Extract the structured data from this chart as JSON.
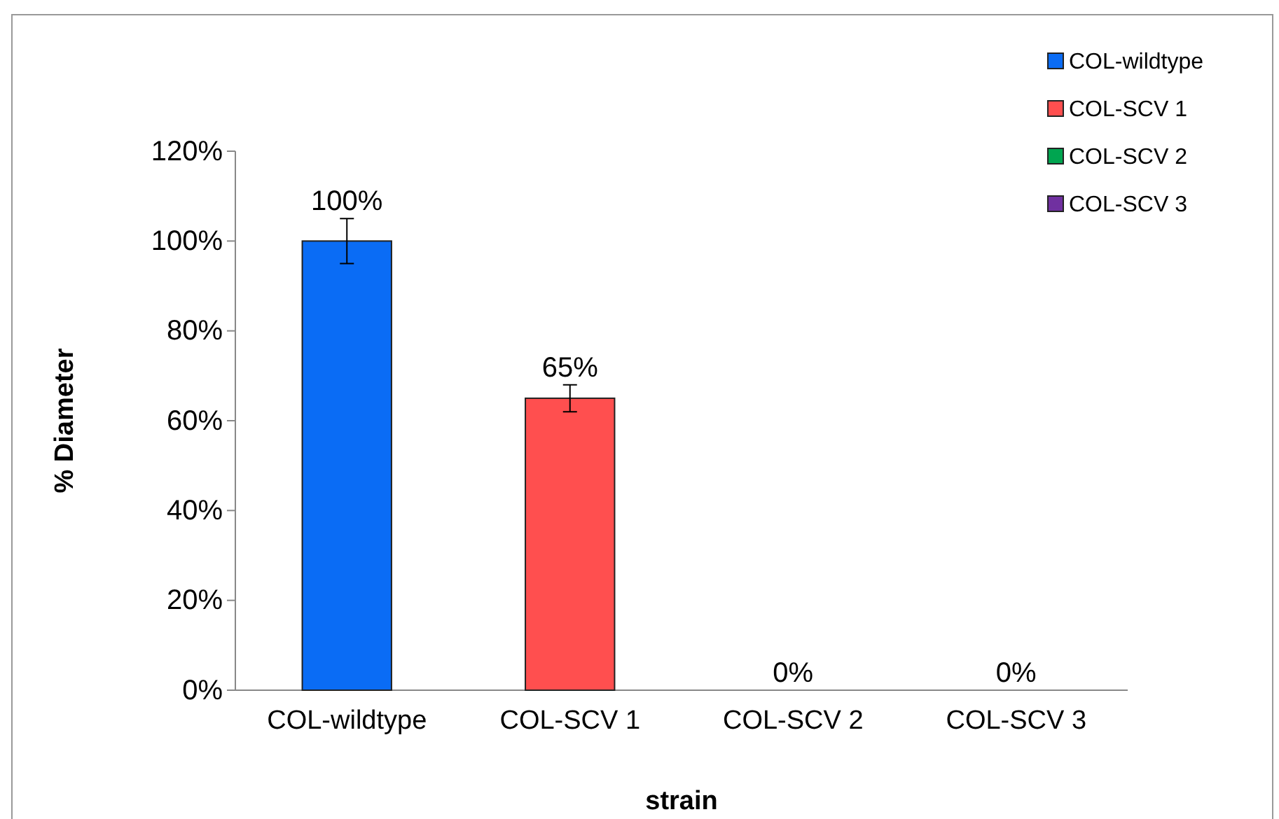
{
  "chart_data": {
    "type": "bar",
    "categories": [
      "COL-wildtype",
      "COL-SCV 1",
      "COL-SCV 2",
      "COL-SCV 3"
    ],
    "series": [
      {
        "name": "COL-wildtype",
        "color": "#0a6cf5",
        "values": [
          100,
          null,
          null,
          null
        ],
        "errors": [
          5,
          null,
          null,
          null
        ],
        "value_labels": [
          "100%",
          null,
          null,
          null
        ]
      },
      {
        "name": "COL-SCV 1",
        "color": "#ff4f4f",
        "values": [
          null,
          65,
          null,
          null
        ],
        "errors": [
          null,
          3,
          null,
          null
        ],
        "value_labels": [
          null,
          "65%",
          null,
          null
        ]
      },
      {
        "name": "COL-SCV 2",
        "color": "#00a550",
        "values": [
          null,
          null,
          0,
          null
        ],
        "value_labels": [
          null,
          null,
          "0%",
          null
        ]
      },
      {
        "name": "COL-SCV 3",
        "color": "#7030a0",
        "values": [
          null,
          null,
          null,
          0
        ],
        "value_labels": [
          null,
          null,
          null,
          "0%"
        ]
      }
    ],
    "xlabel": "strain",
    "ylabel": "% Diameter",
    "ylim": [
      0,
      120
    ],
    "yticks": [
      {
        "value": 0,
        "label": "0%"
      },
      {
        "value": 20,
        "label": "20%"
      },
      {
        "value": 40,
        "label": "40%"
      },
      {
        "value": 60,
        "label": "60%"
      },
      {
        "value": 80,
        "label": "80%"
      },
      {
        "value": 100,
        "label": "100%"
      },
      {
        "value": 120,
        "label": "120%"
      }
    ],
    "legend": "top right"
  }
}
